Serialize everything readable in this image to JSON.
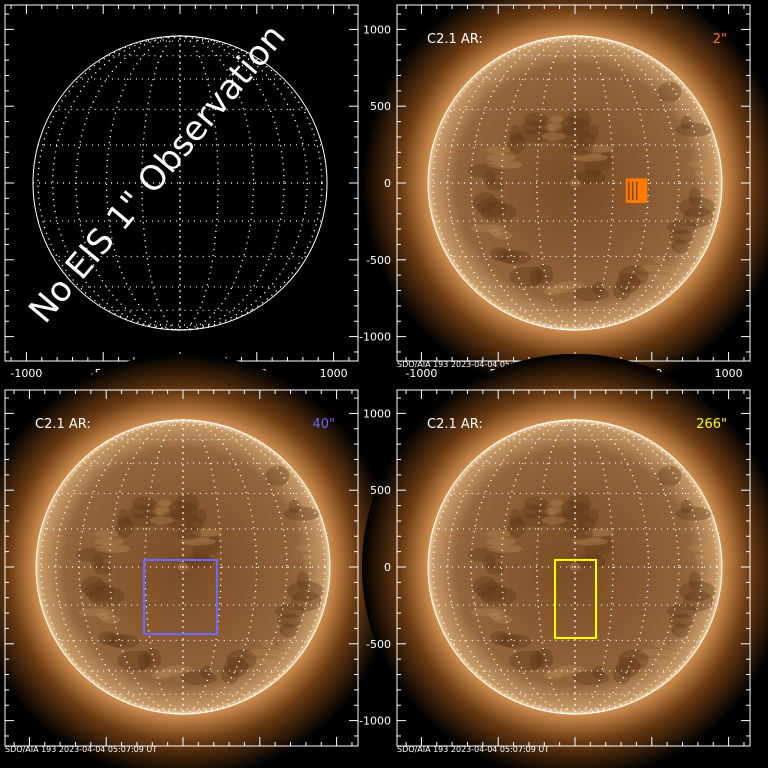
{
  "overlay_text": "No EIS 1\" Observation",
  "tick_labels": [
    "-1000",
    "-500",
    "0",
    "500",
    "1000"
  ],
  "stamp": "SDO/AIA 193  2023-04-04 05:07:09 UT",
  "panels": [
    {
      "id": "no-eis",
      "label": "",
      "fov": "",
      "box": null,
      "box_color": ""
    },
    {
      "id": "fov-2",
      "label": "C2.1 AR:",
      "fov": "2\"",
      "box": {
        "x": [
          330,
          470
        ],
        "y": [
          -130,
          30
        ]
      },
      "box_color": "#ff7a00"
    },
    {
      "id": "fov-40",
      "label": "C2.1 AR:",
      "fov": "40\"",
      "box": {
        "x": [
          -254,
          221
        ],
        "y": [
          -437,
          46
        ]
      },
      "box_color": "#6a6aff"
    },
    {
      "id": "fov-266",
      "label": "C2.1 AR:",
      "fov": "266\"",
      "box": {
        "x": [
          -130,
          137
        ],
        "y": [
          -462,
          46
        ]
      },
      "box_color": "#ffff00"
    }
  ],
  "colors": {
    "corona": "#c8884a",
    "disc": "#8a5a2e",
    "grid": "#ffffff"
  }
}
